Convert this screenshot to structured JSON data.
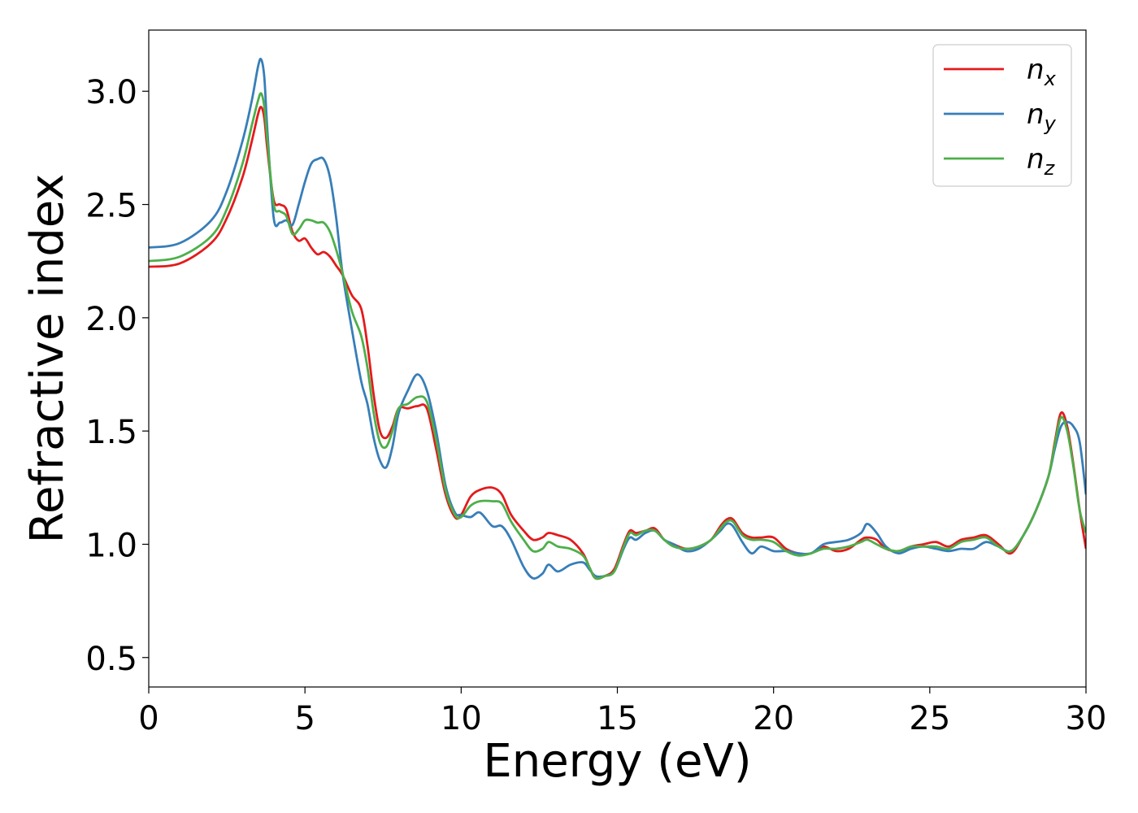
{
  "chart_data": {
    "type": "line",
    "xlabel": "Energy (eV)",
    "ylabel": "Refractive index",
    "xlim": [
      0,
      30
    ],
    "ylim": [
      0.37,
      3.27
    ],
    "x_ticks": [
      0,
      5,
      10,
      15,
      20,
      25,
      30
    ],
    "x_tick_labels": [
      "0",
      "5",
      "10",
      "15",
      "20",
      "25",
      "30"
    ],
    "y_ticks": [
      0.5,
      1.0,
      1.5,
      2.0,
      2.5,
      3.0
    ],
    "y_tick_labels": [
      "0.5",
      "1.0",
      "1.5",
      "2.0",
      "2.5",
      "3.0"
    ],
    "grid": false,
    "legend_position": "top-right",
    "series": [
      {
        "name": "n_x",
        "label_base": "n",
        "label_sub": "x",
        "color": "#e41a1c",
        "x": [
          0,
          1.0,
          2.0,
          2.5,
          3.0,
          3.3,
          3.5,
          3.6,
          3.7,
          3.8,
          4.0,
          4.2,
          4.4,
          4.6,
          4.8,
          5.0,
          5.2,
          5.4,
          5.6,
          5.8,
          6.0,
          6.2,
          6.5,
          6.8,
          7.0,
          7.2,
          7.4,
          7.6,
          7.8,
          8.0,
          8.3,
          8.6,
          8.9,
          9.2,
          9.5,
          9.8,
          10.0,
          10.3,
          10.6,
          11.0,
          11.3,
          11.6,
          12.0,
          12.3,
          12.6,
          12.8,
          13.1,
          13.5,
          13.9,
          14.1,
          14.3,
          14.6,
          14.9,
          15.2,
          15.4,
          15.6,
          15.9,
          16.2,
          16.5,
          16.8,
          17.2,
          17.6,
          18.0,
          18.3,
          18.5,
          18.7,
          19.0,
          19.3,
          19.6,
          20.0,
          20.4,
          20.8,
          21.2,
          21.6,
          22.0,
          22.4,
          22.8,
          23.0,
          23.3,
          23.6,
          24.0,
          24.4,
          24.8,
          25.2,
          25.6,
          26.0,
          26.4,
          26.8,
          27.2,
          27.6,
          28.0,
          28.4,
          28.8,
          29.0,
          29.2,
          29.4,
          29.6,
          29.8,
          30.0
        ],
        "y": [
          2.225,
          2.24,
          2.33,
          2.44,
          2.62,
          2.78,
          2.9,
          2.93,
          2.88,
          2.74,
          2.52,
          2.5,
          2.48,
          2.38,
          2.34,
          2.35,
          2.31,
          2.28,
          2.29,
          2.27,
          2.23,
          2.19,
          2.1,
          2.04,
          1.88,
          1.66,
          1.5,
          1.47,
          1.52,
          1.6,
          1.6,
          1.61,
          1.6,
          1.42,
          1.22,
          1.12,
          1.13,
          1.21,
          1.24,
          1.25,
          1.22,
          1.13,
          1.06,
          1.02,
          1.03,
          1.05,
          1.04,
          1.02,
          0.96,
          0.9,
          0.85,
          0.86,
          0.89,
          1.0,
          1.06,
          1.05,
          1.06,
          1.07,
          1.02,
          1.0,
          0.98,
          0.99,
          1.02,
          1.08,
          1.11,
          1.11,
          1.05,
          1.03,
          1.03,
          1.03,
          0.98,
          0.96,
          0.96,
          0.99,
          0.97,
          0.98,
          1.02,
          1.03,
          1.02,
          0.98,
          0.97,
          0.99,
          1.0,
          1.01,
          0.99,
          1.02,
          1.03,
          1.04,
          1.0,
          0.96,
          1.04,
          1.15,
          1.3,
          1.45,
          1.58,
          1.52,
          1.35,
          1.15,
          0.98
        ]
      },
      {
        "name": "n_y",
        "label_base": "n",
        "label_sub": "y",
        "color": "#377eb8",
        "x": [
          0,
          1.0,
          2.0,
          2.5,
          3.0,
          3.3,
          3.5,
          3.6,
          3.7,
          3.8,
          4.0,
          4.2,
          4.4,
          4.6,
          4.8,
          5.0,
          5.2,
          5.4,
          5.6,
          5.8,
          6.0,
          6.2,
          6.5,
          6.8,
          7.0,
          7.2,
          7.4,
          7.6,
          7.8,
          8.0,
          8.3,
          8.6,
          8.9,
          9.2,
          9.5,
          9.8,
          10.0,
          10.3,
          10.6,
          11.0,
          11.3,
          11.6,
          12.0,
          12.3,
          12.6,
          12.8,
          13.1,
          13.5,
          13.9,
          14.1,
          14.3,
          14.6,
          14.9,
          15.2,
          15.4,
          15.6,
          15.9,
          16.2,
          16.5,
          16.8,
          17.2,
          17.6,
          18.0,
          18.3,
          18.5,
          18.7,
          19.0,
          19.3,
          19.6,
          20.0,
          20.4,
          20.8,
          21.2,
          21.6,
          22.0,
          22.4,
          22.8,
          23.0,
          23.3,
          23.6,
          24.0,
          24.4,
          24.8,
          25.2,
          25.6,
          26.0,
          26.4,
          26.8,
          27.2,
          27.6,
          28.0,
          28.4,
          28.8,
          29.0,
          29.2,
          29.4,
          29.6,
          29.8,
          30.0
        ],
        "y": [
          2.31,
          2.33,
          2.43,
          2.56,
          2.78,
          2.96,
          3.11,
          3.14,
          3.06,
          2.82,
          2.44,
          2.42,
          2.43,
          2.41,
          2.5,
          2.6,
          2.68,
          2.7,
          2.7,
          2.62,
          2.44,
          2.2,
          1.95,
          1.72,
          1.62,
          1.47,
          1.37,
          1.34,
          1.43,
          1.58,
          1.68,
          1.75,
          1.68,
          1.5,
          1.26,
          1.14,
          1.13,
          1.12,
          1.14,
          1.08,
          1.08,
          1.02,
          0.9,
          0.85,
          0.87,
          0.91,
          0.88,
          0.91,
          0.92,
          0.89,
          0.86,
          0.86,
          0.88,
          0.98,
          1.03,
          1.02,
          1.05,
          1.06,
          1.02,
          1.0,
          0.97,
          0.98,
          1.02,
          1.06,
          1.09,
          1.08,
          1.01,
          0.96,
          0.99,
          0.97,
          0.97,
          0.96,
          0.96,
          1.0,
          1.01,
          1.02,
          1.05,
          1.09,
          1.05,
          0.99,
          0.96,
          0.98,
          0.99,
          0.98,
          0.97,
          0.98,
          0.98,
          1.01,
          0.99,
          0.97,
          1.04,
          1.15,
          1.3,
          1.42,
          1.52,
          1.54,
          1.52,
          1.45,
          1.22
        ]
      },
      {
        "name": "n_z",
        "label_base": "n",
        "label_sub": "z",
        "color": "#4daf4a",
        "x": [
          0,
          1.0,
          2.0,
          2.5,
          3.0,
          3.3,
          3.5,
          3.6,
          3.7,
          3.8,
          4.0,
          4.2,
          4.4,
          4.6,
          4.8,
          5.0,
          5.2,
          5.4,
          5.6,
          5.8,
          6.0,
          6.2,
          6.5,
          6.8,
          7.0,
          7.2,
          7.4,
          7.6,
          7.8,
          8.0,
          8.3,
          8.6,
          8.9,
          9.2,
          9.5,
          9.8,
          10.0,
          10.3,
          10.6,
          11.0,
          11.3,
          11.6,
          12.0,
          12.3,
          12.6,
          12.8,
          13.1,
          13.5,
          13.9,
          14.1,
          14.3,
          14.6,
          14.9,
          15.2,
          15.4,
          15.6,
          15.9,
          16.2,
          16.5,
          16.8,
          17.2,
          17.6,
          18.0,
          18.3,
          18.5,
          18.7,
          19.0,
          19.3,
          19.6,
          20.0,
          20.4,
          20.8,
          21.2,
          21.6,
          22.0,
          22.4,
          22.8,
          23.0,
          23.3,
          23.6,
          24.0,
          24.4,
          24.8,
          25.2,
          25.6,
          26.0,
          26.4,
          26.8,
          27.2,
          27.6,
          28.0,
          28.4,
          28.8,
          29.0,
          29.2,
          29.4,
          29.6,
          29.8,
          30.0
        ],
        "y": [
          2.25,
          2.27,
          2.36,
          2.48,
          2.68,
          2.85,
          2.96,
          2.99,
          2.93,
          2.78,
          2.5,
          2.47,
          2.45,
          2.37,
          2.39,
          2.43,
          2.43,
          2.42,
          2.42,
          2.38,
          2.3,
          2.2,
          2.03,
          1.92,
          1.78,
          1.58,
          1.45,
          1.43,
          1.5,
          1.6,
          1.62,
          1.65,
          1.63,
          1.46,
          1.24,
          1.13,
          1.12,
          1.17,
          1.19,
          1.19,
          1.18,
          1.1,
          1.02,
          0.97,
          0.98,
          1.01,
          0.99,
          0.98,
          0.95,
          0.9,
          0.85,
          0.86,
          0.88,
          0.99,
          1.05,
          1.04,
          1.06,
          1.06,
          1.02,
          0.99,
          0.98,
          0.99,
          1.02,
          1.07,
          1.1,
          1.1,
          1.04,
          1.02,
          1.02,
          1.01,
          0.97,
          0.95,
          0.96,
          0.98,
          0.98,
          0.99,
          1.01,
          1.02,
          1.0,
          0.98,
          0.97,
          0.99,
          0.99,
          0.99,
          0.98,
          1.01,
          1.02,
          1.03,
          0.99,
          0.97,
          1.04,
          1.15,
          1.3,
          1.44,
          1.56,
          1.5,
          1.34,
          1.15,
          1.05
        ]
      }
    ]
  }
}
